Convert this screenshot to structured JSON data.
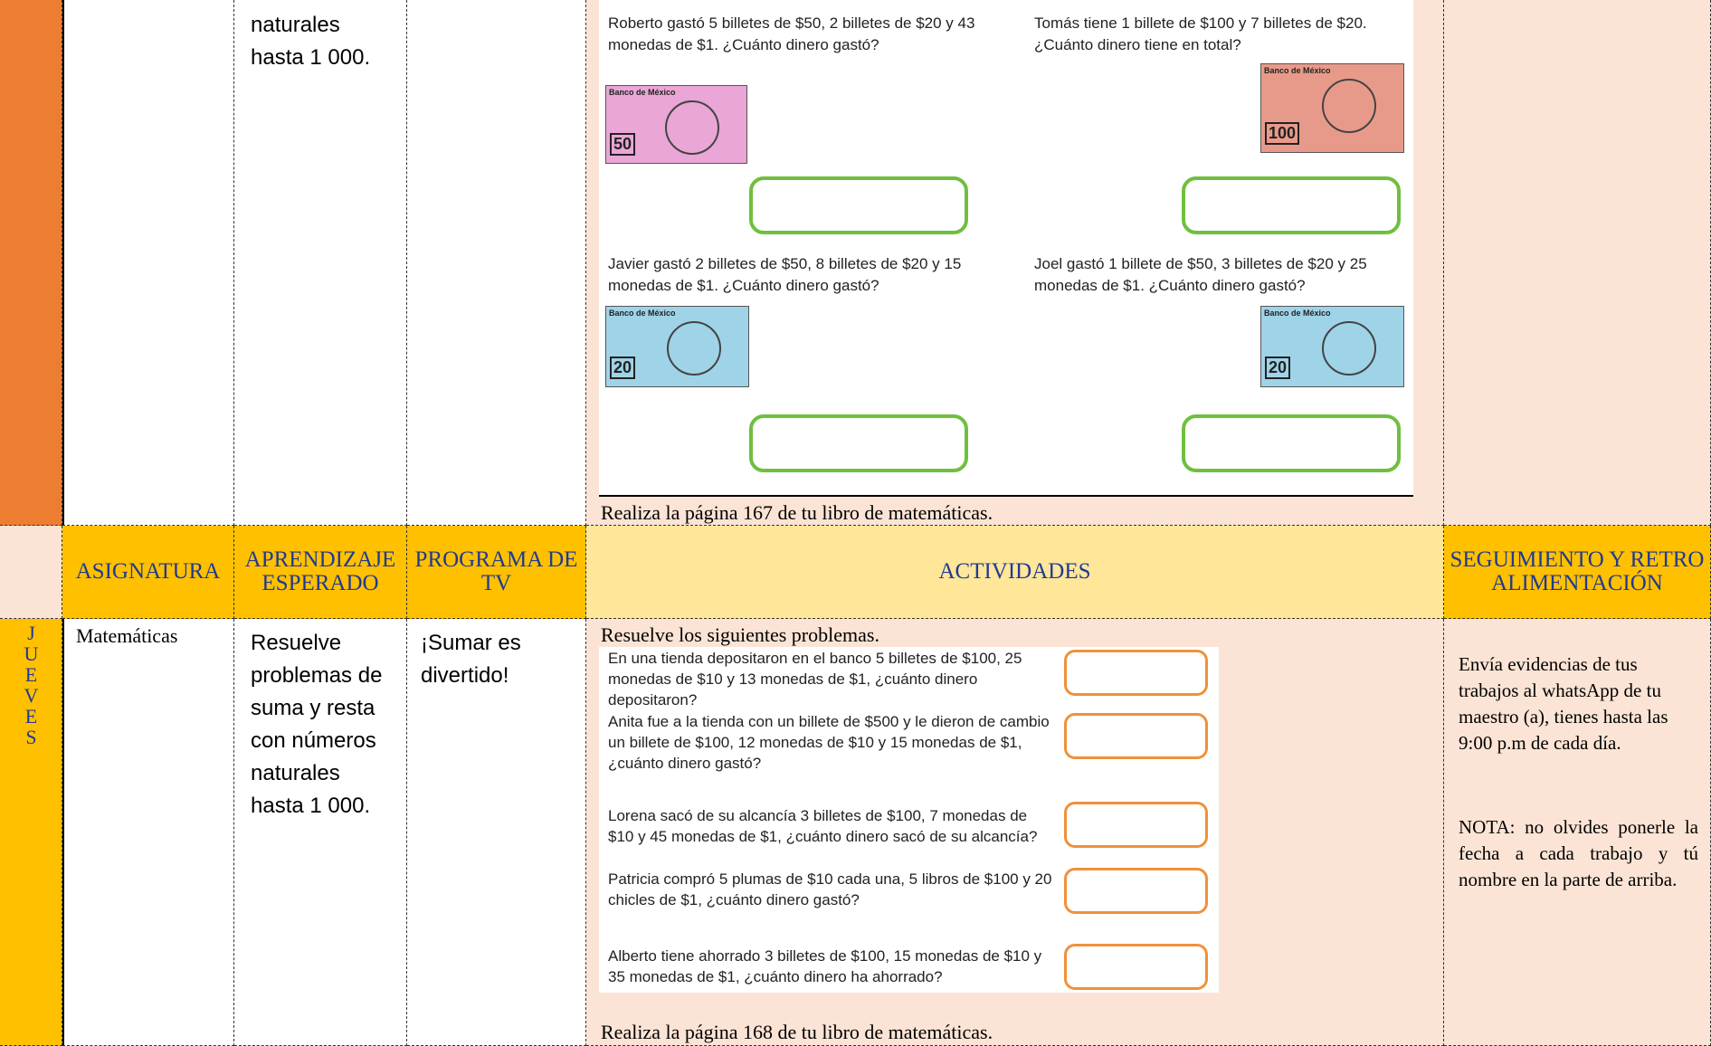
{
  "top_row": {
    "aprendizaje": "naturales hasta 1 000.",
    "problems": [
      {
        "text": "Roberto gastó 5 billetes de $50, 2 billetes de $20 y 43 monedas de $1. ¿Cuánto dinero gastó?",
        "bill_bank": "Banco de México",
        "bill_value": "50"
      },
      {
        "text": "Tomás tiene 1 billete de $100 y 7 billetes de $20. ¿Cuánto dinero tiene en total?",
        "bill_bank": "Banco de México",
        "bill_value": "100"
      },
      {
        "text": "Javier gastó 2 billetes de $50, 8 billetes de $20 y 15 monedas de $1. ¿Cuánto dinero gastó?",
        "bill_bank": "Banco de México",
        "bill_value": "20"
      },
      {
        "text": "Joel gastó 1 billete de $50, 3 billetes de $20 y 25 monedas de $1. ¿Cuánto dinero gastó?",
        "bill_bank": "Banco de México",
        "bill_value": "20"
      }
    ],
    "instruction": "Realiza la página 167 de tu libro de matemáticas."
  },
  "header": {
    "asignatura": "ASIGNATURA",
    "aprendizaje": "APRENDIZAJE ESPERADO",
    "programa": "PROGRAMA DE TV",
    "actividades": "ACTIVIDADES",
    "seguimiento": "SEGUIMIENTO Y RETROALIMENTACIÓN"
  },
  "thursday": {
    "day": [
      "J",
      "U",
      "E",
      "V",
      "E",
      "S"
    ],
    "subject": "Matemáticas",
    "aprendizaje": "Resuelve problemas de suma y resta con números naturales hasta 1 000.",
    "program": "¡Sumar es divertido!",
    "intro": "Resuelve los siguientes problemas.",
    "problems": [
      "En una tienda depositaron en el banco 5 billetes de $100, 25 monedas de $10 y 13 monedas de $1, ¿cuánto dinero depositaron?",
      "Anita fue a la tienda con un billete de $500 y le dieron de cambio un billete de $100, 12 monedas de $10 y 15 monedas de $1, ¿cuánto dinero gastó?",
      "Lorena sacó de su alcancía 3 billetes de $100, 7 monedas de $10 y 45 monedas de $1, ¿cuánto dinero sacó de su alcancía?",
      "Patricia compró 5 plumas de $10 cada una, 5 libros de $100 y 20 chicles de $1, ¿cuánto dinero gastó?",
      "Alberto tiene ahorrado 3 billetes de $100, 15 monedas de $10 y 35 monedas de $1, ¿cuánto dinero ha ahorrado?"
    ],
    "instruction": "Realiza la página 168 de tu libro de matemáticas.",
    "seguimiento": "Envía evidencias de tus trabajos al whatsApp de tu maestro (a), tienes hasta las 9:00 p.m de cada día.",
    "nota": "NOTA: no olvides ponerle la fecha a cada trabajo y tú nombre en la parte de arriba."
  }
}
